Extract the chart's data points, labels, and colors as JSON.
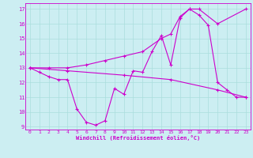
{
  "xlabel": "Windchill (Refroidissement éolien,°C)",
  "xlim": [
    -0.5,
    23.5
  ],
  "ylim": [
    8.8,
    17.4
  ],
  "xticks": [
    0,
    1,
    2,
    3,
    4,
    5,
    6,
    7,
    8,
    9,
    10,
    11,
    12,
    13,
    14,
    15,
    16,
    17,
    18,
    19,
    20,
    21,
    22,
    23
  ],
  "yticks": [
    9,
    10,
    11,
    12,
    13,
    14,
    15,
    16,
    17
  ],
  "bg_color": "#cceef2",
  "line_color": "#cc00cc",
  "grid_color": "#aadddd",
  "line1_x": [
    0,
    1,
    2,
    3,
    4,
    5,
    6,
    7,
    8,
    9,
    10,
    11,
    12,
    13,
    14,
    15,
    16,
    17,
    18,
    19,
    20,
    21,
    22,
    23
  ],
  "line1_y": [
    13.0,
    12.7,
    12.4,
    12.2,
    12.2,
    10.2,
    9.3,
    9.1,
    9.4,
    11.6,
    11.2,
    12.8,
    12.7,
    14.1,
    15.2,
    13.2,
    16.4,
    17.0,
    16.6,
    15.9,
    12.0,
    11.5,
    11.0,
    11.0
  ],
  "line2_x": [
    0,
    2,
    4,
    6,
    8,
    10,
    12,
    14,
    15,
    16,
    17,
    18,
    20,
    23
  ],
  "line2_y": [
    13.0,
    13.0,
    13.0,
    13.2,
    13.5,
    13.8,
    14.1,
    15.0,
    15.3,
    16.5,
    17.0,
    17.0,
    16.0,
    17.0
  ],
  "line3_x": [
    0,
    4,
    10,
    15,
    20,
    23
  ],
  "line3_y": [
    13.0,
    12.8,
    12.5,
    12.2,
    11.5,
    11.0
  ]
}
